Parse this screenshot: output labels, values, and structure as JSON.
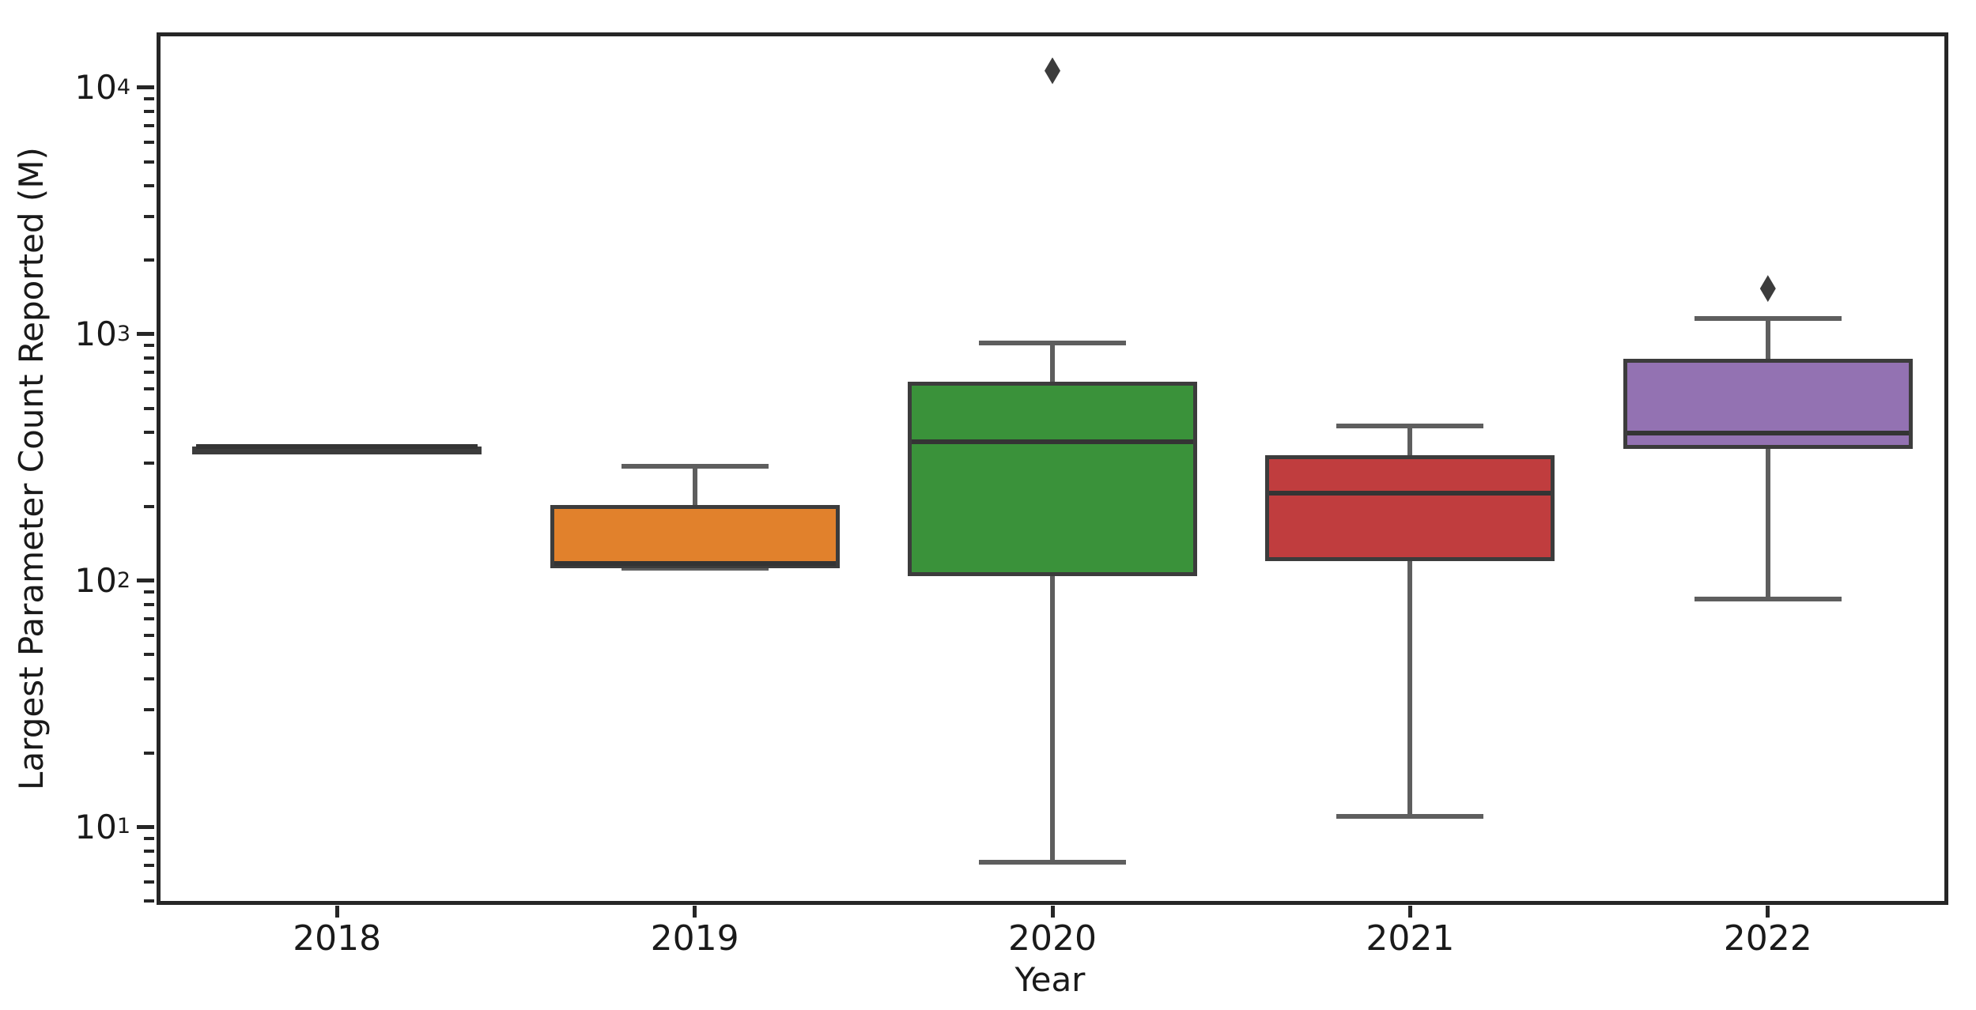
{
  "chart_data": {
    "type": "boxplot",
    "title": "",
    "xlabel": "Year",
    "ylabel": "Largest Parameter Count Reported (M)",
    "yscale": "log",
    "ylim": [
      4.9,
      16500
    ],
    "y_major_ticks": [
      10,
      100,
      1000,
      10000
    ],
    "x_categories": [
      "2018",
      "2019",
      "2020",
      "2021",
      "2022"
    ],
    "grid": false,
    "legend_position": "none",
    "series": [
      {
        "category": "2018",
        "color": "#3f7191",
        "min": 350,
        "q1": 350,
        "median": 350,
        "q3": 350,
        "max": 350,
        "outliers": []
      },
      {
        "category": "2019",
        "color": "#e1812c",
        "min": 112,
        "q1": 112,
        "median": 117,
        "q3": 203,
        "max": 290,
        "outliers": []
      },
      {
        "category": "2020",
        "color": "#3a923a",
        "min": 7.2,
        "q1": 104,
        "median": 365,
        "q3": 640,
        "max": 920,
        "outliers": [
          11700
        ]
      },
      {
        "category": "2021",
        "color": "#c03d3e",
        "min": 11,
        "q1": 120,
        "median": 227,
        "q3": 322,
        "max": 425,
        "outliers": []
      },
      {
        "category": "2022",
        "color": "#9372b2",
        "min": 84,
        "q1": 343,
        "median": 397,
        "q3": 795,
        "max": 1155,
        "outliers": [
          1530
        ]
      }
    ],
    "colors": {
      "box_edge": "#3c3c3c",
      "median_line": "#343434",
      "whisker": "#5e5e5e",
      "cap": "#5e5e5e",
      "outlier": "#3c3c3c",
      "spine": "#262626",
      "text": "#1a1a1a",
      "background": "#ffffff"
    }
  }
}
